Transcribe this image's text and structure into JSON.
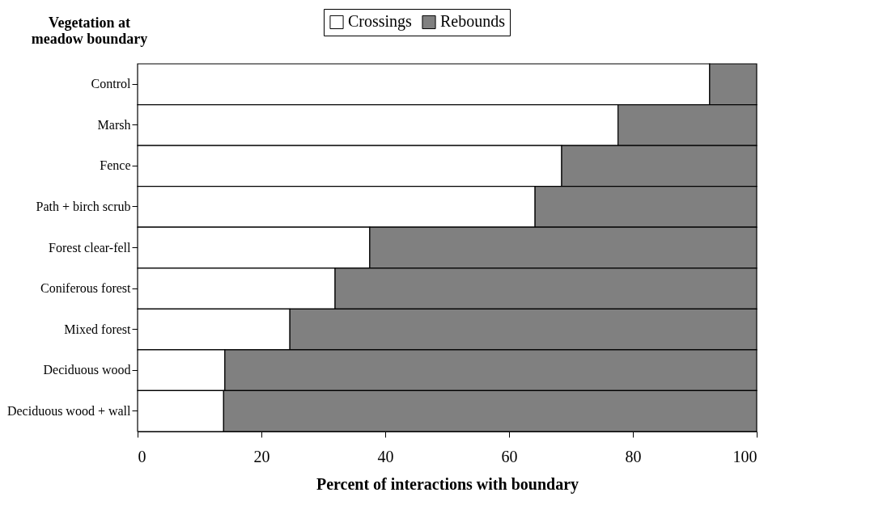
{
  "chart_data": {
    "type": "bar",
    "orientation": "horizontal",
    "stacked": true,
    "ylabel": "Vegetation at meadow boundary",
    "xlabel": "Percent of interactions with boundary",
    "categories": [
      "Control",
      "Marsh",
      "Fence",
      "Path + birch scrub",
      "Forest clear-fell",
      "Coniferous forest",
      "Mixed forest",
      "Deciduous wood",
      "Deciduous wood + wall"
    ],
    "series": [
      {
        "name": "Crossings",
        "color": "#ffffff",
        "values": [
          92.4,
          77.6,
          68.5,
          64.2,
          37.5,
          31.9,
          24.6,
          14.1,
          13.9
        ]
      },
      {
        "name": "Rebounds",
        "color": "#808080",
        "values": [
          7.6,
          22.4,
          31.5,
          35.8,
          62.5,
          68.1,
          75.4,
          85.9,
          86.1
        ]
      }
    ],
    "xlim": [
      0,
      100
    ],
    "xticks": [
      0,
      20,
      40,
      60,
      80,
      100
    ],
    "grid": false,
    "legend": "top"
  }
}
